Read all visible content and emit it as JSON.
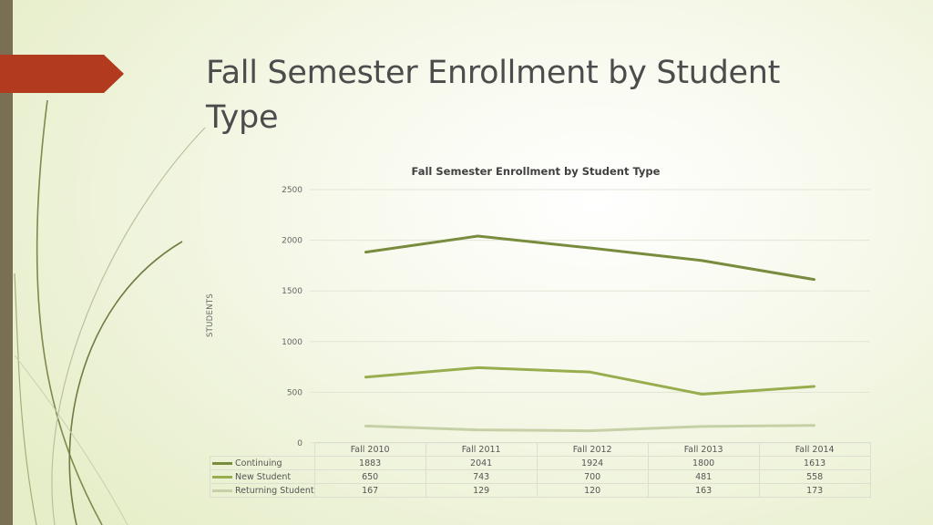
{
  "slide": {
    "title": "Fall Semester Enrollment by Student Type"
  },
  "colors": {
    "accent": "#b23a1e",
    "left_bar": "#7a6f52",
    "continuing": "#788c3e",
    "new_student": "#98ad4e",
    "returning": "#c6d0a6"
  },
  "chart_data": {
    "type": "line",
    "title": "Fall Semester Enrollment by Student Type",
    "xlabel": "",
    "ylabel": "STUDENTS",
    "categories": [
      "Fall 2010",
      "Fall 2011",
      "Fall 2012",
      "Fall 2013",
      "Fall 2014"
    ],
    "ylim": [
      0,
      2500
    ],
    "yticks": [
      0,
      500,
      1000,
      1500,
      2000,
      2500
    ],
    "grid": true,
    "legend": "data-table-below",
    "series": [
      {
        "name": "Continuing",
        "values": [
          1883,
          2041,
          1924,
          1800,
          1613
        ],
        "color": "#788c3e"
      },
      {
        "name": "New Student",
        "values": [
          650,
          743,
          700,
          481,
          558
        ],
        "color": "#98ad4e"
      },
      {
        "name": "Returning Student",
        "values": [
          167,
          129,
          120,
          163,
          173
        ],
        "color": "#c6d0a6"
      }
    ]
  }
}
